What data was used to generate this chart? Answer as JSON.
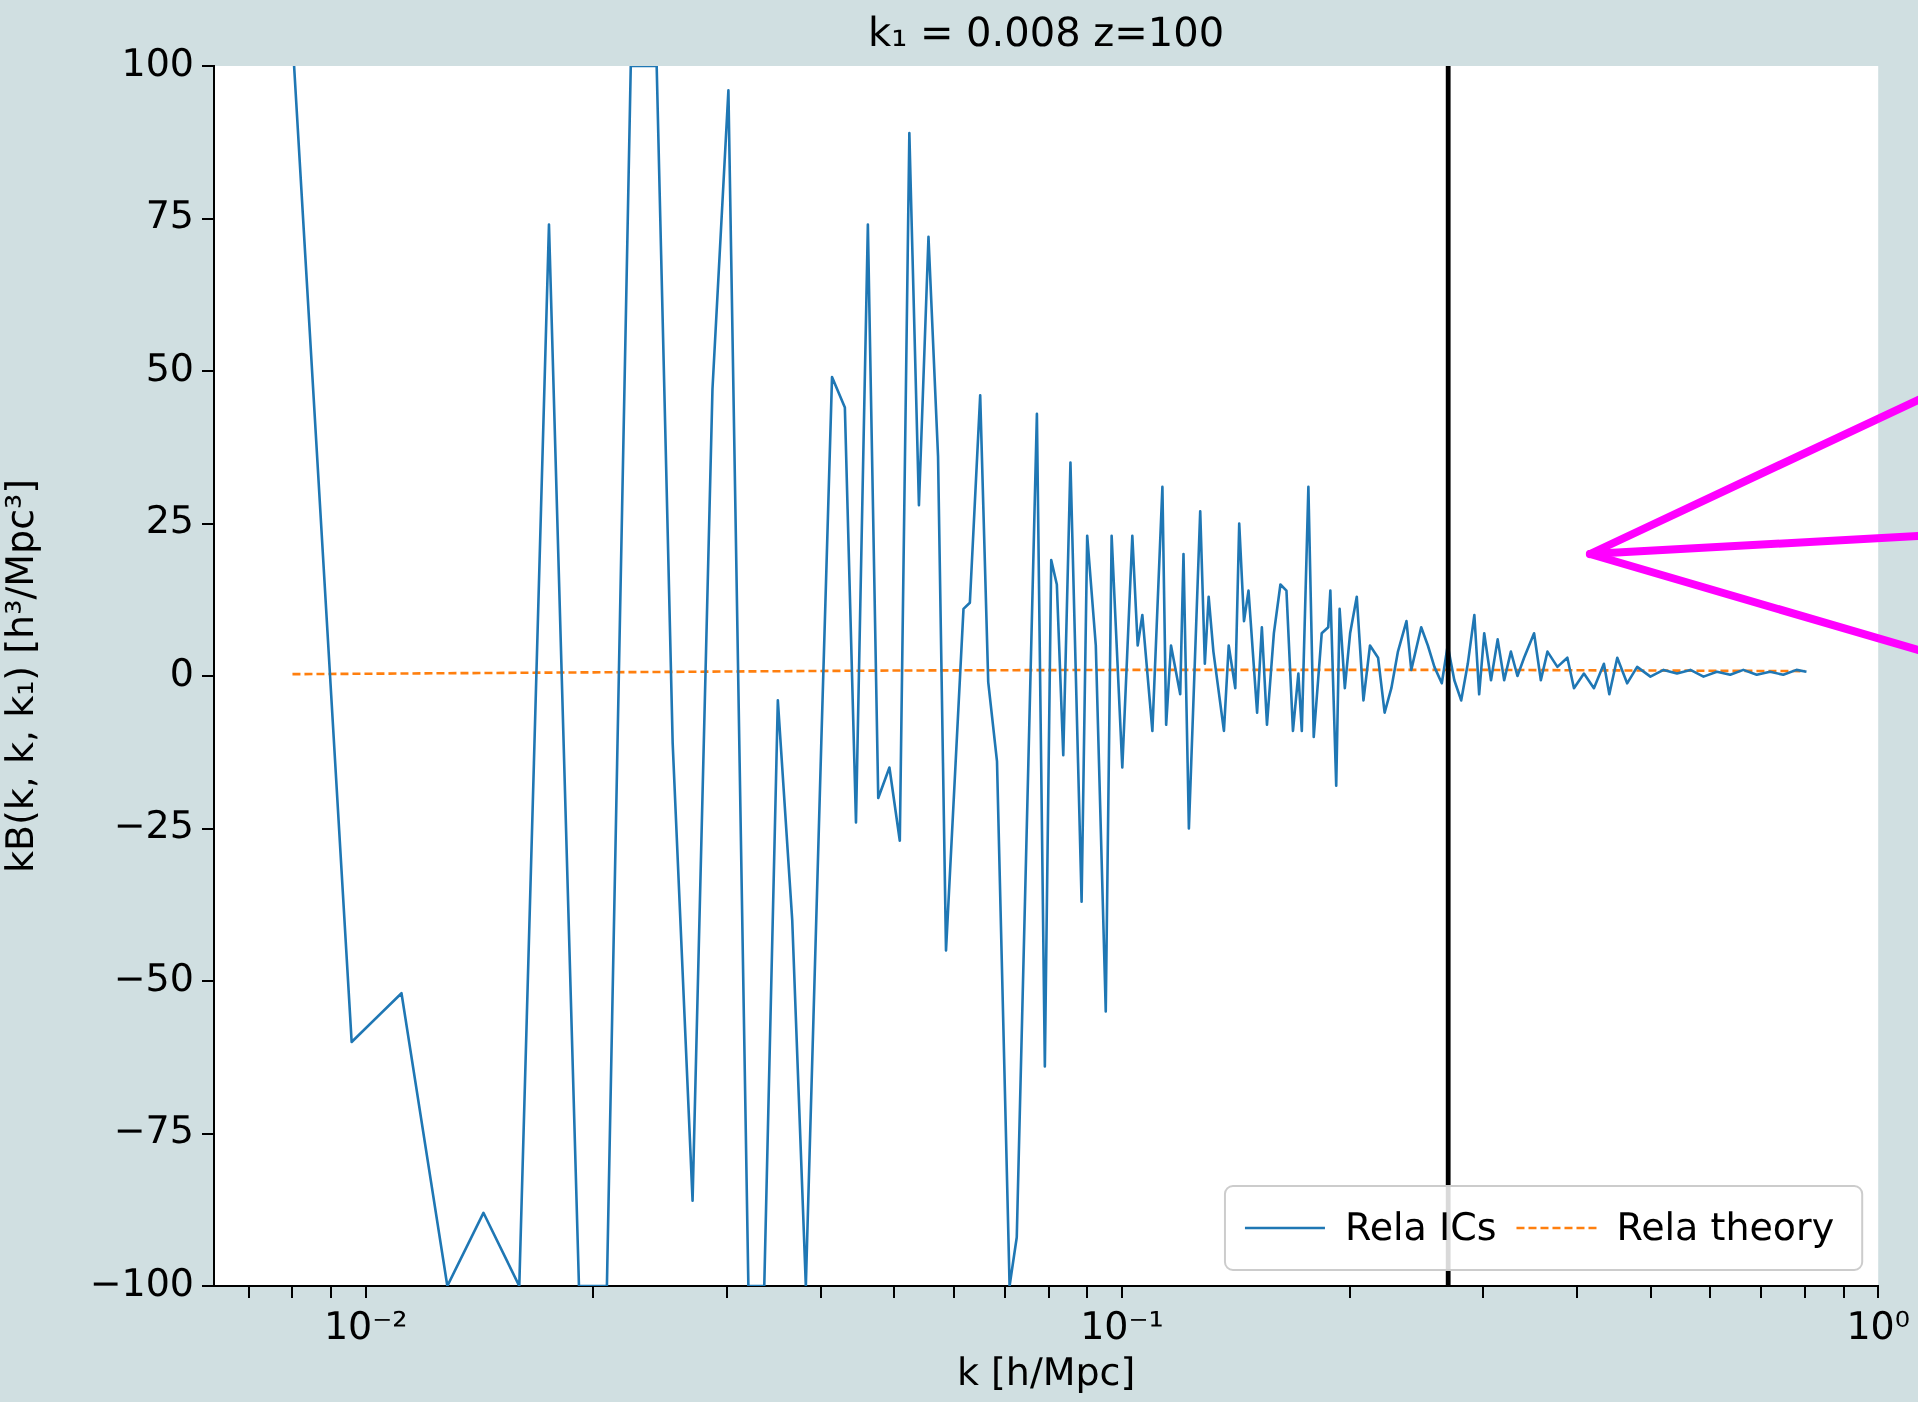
{
  "chart_data": {
    "type": "line",
    "title": "k₁ = 0.008 z=100",
    "xlabel": "k [h/Mpc]",
    "ylabel": "kB(k, k, k₁) [h³/Mpc³]",
    "log": "x",
    "grid": false,
    "legend": "bottom right",
    "xlim": [
      0.0063,
      1.0
    ],
    "ylim": [
      -100,
      100
    ],
    "xticks": [
      {
        "value": 0.007,
        "label": null
      },
      {
        "value": 0.008,
        "label": null
      },
      {
        "value": 0.009,
        "label": null
      },
      {
        "value": 0.01,
        "label": "10⁻²"
      },
      {
        "value": 0.02,
        "label": null
      },
      {
        "value": 0.03,
        "label": null
      },
      {
        "value": 0.04,
        "label": null
      },
      {
        "value": 0.05,
        "label": null
      },
      {
        "value": 0.06,
        "label": null
      },
      {
        "value": 0.07,
        "label": null
      },
      {
        "value": 0.08,
        "label": null
      },
      {
        "value": 0.09,
        "label": null
      },
      {
        "value": 0.1,
        "label": "10⁻¹"
      },
      {
        "value": 0.2,
        "label": null
      },
      {
        "value": 0.3,
        "label": null
      },
      {
        "value": 0.4,
        "label": null
      },
      {
        "value": 0.5,
        "label": null
      },
      {
        "value": 0.6,
        "label": null
      },
      {
        "value": 0.7,
        "label": null
      },
      {
        "value": 0.8,
        "label": null
      },
      {
        "value": 0.9,
        "label": null
      },
      {
        "value": 1,
        "label": "10⁰"
      }
    ],
    "yticks": [
      {
        "value": -100,
        "label": "−100"
      },
      {
        "value": -75,
        "label": "−75"
      },
      {
        "value": -50,
        "label": "−50"
      },
      {
        "value": -25,
        "label": "−25"
      },
      0,
      25,
      50,
      75,
      100
    ],
    "ref_lines": [
      {
        "axis": "x",
        "value": 0.27,
        "color": "#000000"
      }
    ],
    "series": [
      {
        "name": "Rela ICs",
        "color": "#1f77b4",
        "line_style": "solid",
        "x": [
          0.00804,
          0.00958,
          0.01115,
          0.01282,
          0.01431,
          0.01596,
          0.01747,
          0.01914,
          0.02084,
          0.02241,
          0.02425,
          0.02546,
          0.02705,
          0.02874,
          0.03017,
          0.03206,
          0.03365,
          0.03507,
          0.03664,
          0.03819,
          0.04003,
          0.04136,
          0.04301,
          0.04449,
          0.04613,
          0.04761,
          0.04926,
          0.05084,
          0.05234,
          0.05389,
          0.05548,
          0.05712,
          0.05852,
          0.06172,
          0.06293,
          0.06494,
          0.06655,
          0.06835,
          0.07102,
          0.07259,
          0.07718,
          0.07907,
          0.08062,
          0.08201,
          0.08363,
          0.08548,
          0.08843,
          0.08995,
          0.09234,
          0.09518,
          0.0969,
          0.1001,
          0.1032,
          0.1049,
          0.1064,
          0.1097,
          0.1131,
          0.1144,
          0.1161,
          0.1194,
          0.1206,
          0.1226,
          0.1269,
          0.1287,
          0.1302,
          0.1321,
          0.1364,
          0.1384,
          0.1412,
          0.1429,
          0.145,
          0.147,
          0.1509,
          0.1531,
          0.1555,
          0.1588,
          0.162,
          0.165,
          0.1683,
          0.1711,
          0.1729,
          0.1764,
          0.1793,
          0.1837,
          0.1874,
          0.1886,
          0.192,
          0.194,
          0.1971,
          0.2003,
          0.2044,
          0.2086,
          0.2128,
          0.2181,
          0.2225,
          0.2271,
          0.2317,
          0.2378,
          0.2413,
          0.2487,
          0.2538,
          0.2589,
          0.2648,
          0.2696,
          0.2751,
          0.2809,
          0.2866,
          0.2924,
          0.2967,
          0.3013,
          0.3076,
          0.3139,
          0.3202,
          0.3268,
          0.3334,
          0.3402,
          0.3507,
          0.358,
          0.3653,
          0.3765,
          0.3881,
          0.396,
          0.4082,
          0.4208,
          0.4338,
          0.441,
          0.4518,
          0.4656,
          0.48,
          0.4998,
          0.5202,
          0.5419,
          0.5644,
          0.5875,
          0.6119,
          0.6373,
          0.6632,
          0.6908,
          0.7194,
          0.7489,
          0.7798,
          0.8038
        ],
        "values": [
          100,
          -60,
          -52,
          -100,
          -88,
          -100,
          74,
          -100,
          -100,
          100,
          100,
          -11,
          -86,
          47,
          96,
          -100,
          -100,
          -4,
          -40,
          -100,
          -11,
          49,
          44,
          -24,
          74,
          -20,
          -15,
          -27,
          89,
          28,
          72,
          36,
          -45,
          11,
          12,
          46,
          -1,
          -14,
          -100,
          -92,
          43,
          -64,
          19,
          15,
          -13,
          35,
          -37,
          23,
          5,
          -55,
          23,
          -15,
          23,
          5,
          10,
          -9,
          31,
          -8,
          5,
          -3,
          20,
          -25,
          27,
          2,
          13,
          4,
          -9,
          5,
          -2,
          25,
          9,
          14,
          -6,
          8,
          -8,
          7,
          15,
          14,
          -9,
          0.4,
          -9,
          31,
          -10,
          7,
          8,
          14,
          -18,
          11,
          -2,
          7,
          13,
          -4,
          5,
          3,
          -6,
          -2,
          4,
          9,
          1,
          8,
          5,
          1.5,
          -1.2,
          5,
          -0.7,
          -4,
          2,
          10,
          -3,
          7,
          -0.7,
          6,
          -0.7,
          4,
          0,
          3,
          7,
          -0.7,
          4,
          1.5,
          3,
          -2,
          0.4,
          -2,
          2,
          -3,
          3,
          -1.2,
          1.5,
          -0.1,
          1,
          0.4,
          1,
          -0.1,
          0.7,
          0.2,
          1,
          0.2,
          0.7,
          0.2,
          1,
          0.7
        ]
      },
      {
        "name": "Rela theory",
        "color": "#ff7f0e",
        "line_style": "dashed",
        "x": [
          0.008,
          0.02,
          0.05,
          0.1,
          0.3,
          0.8
        ],
        "values": [
          0.3,
          0.6,
          0.9,
          1,
          1,
          0.8
        ]
      }
    ]
  }
}
